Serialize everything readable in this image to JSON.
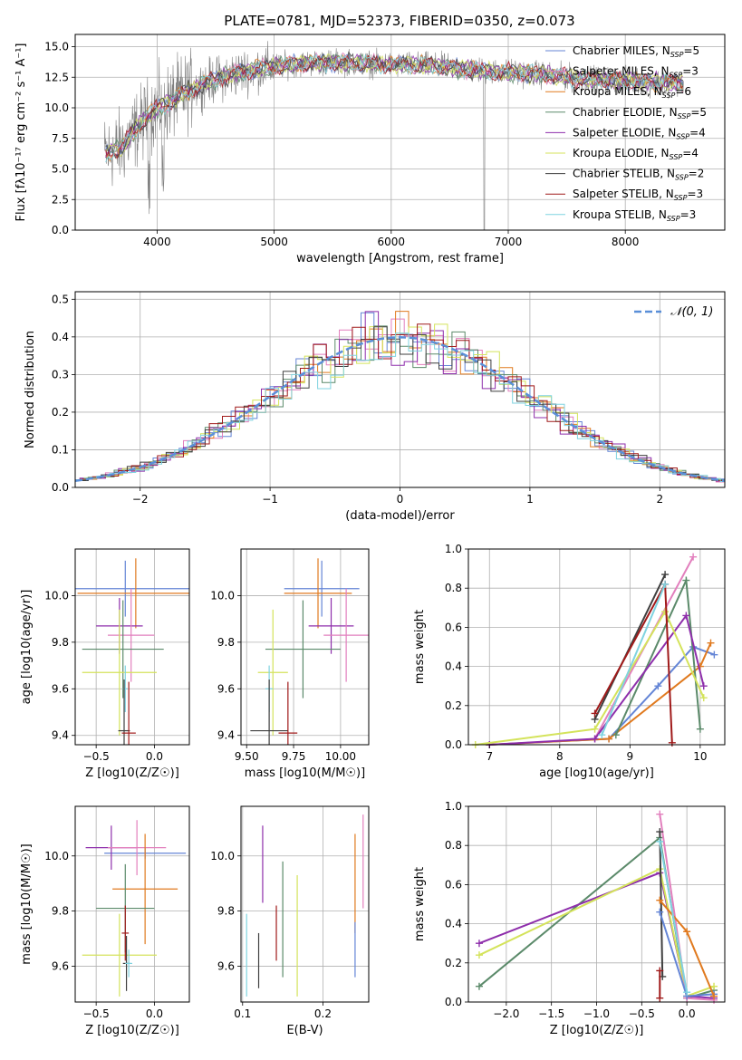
{
  "figure_title": "PLATE=0781, MJD=52373, FIBERID=0350, z=0.073",
  "colors": {
    "chabrier_miles": "#6485d6",
    "salpeter_miles": "#e27fbd",
    "kroupa_miles": "#e07a1f",
    "chabrier_elodie": "#5b8a6a",
    "salpeter_elodie": "#8e2eab",
    "kroupa_elodie": "#d4e35b",
    "chabrier_stelib": "#3f3f3f",
    "salpeter_stelib": "#a01a1a",
    "kroupa_stelib": "#7fd3e0",
    "normal": "#5a8fd8",
    "data": "#808080",
    "grid": "#b0b0b0"
  },
  "legend1": [
    {
      "name": "Chabrier MILES, N",
      "sub": "SSP",
      "tail": "=5",
      "color": "#6485d6"
    },
    {
      "name": "Salpeter MILES, N",
      "sub": "SSP",
      "tail": "=3",
      "color": "#e27fbd"
    },
    {
      "name": "Kroupa MILES, N",
      "sub": "SSP",
      "tail": "=6",
      "color": "#e07a1f"
    },
    {
      "name": "Chabrier ELODIE, N",
      "sub": "SSP",
      "tail": "=5",
      "color": "#5b8a6a"
    },
    {
      "name": "Salpeter ELODIE, N",
      "sub": "SSP",
      "tail": "=4",
      "color": "#8e2eab"
    },
    {
      "name": "Kroupa ELODIE, N",
      "sub": "SSP",
      "tail": "=4",
      "color": "#d4e35b"
    },
    {
      "name": "Chabrier STELIB, N",
      "sub": "SSP",
      "tail": "=2",
      "color": "#3f3f3f"
    },
    {
      "name": "Salpeter STELIB, N",
      "sub": "SSP",
      "tail": "=3",
      "color": "#a01a1a"
    },
    {
      "name": "Kroupa STELIB, N",
      "sub": "SSP",
      "tail": "=3",
      "color": "#7fd3e0"
    }
  ],
  "chart_data": [
    {
      "id": "spectrum",
      "type": "line",
      "xlabel": "wavelength [Angstrom, rest frame]",
      "ylabel": "Flux [fλ10⁻¹⁷ erg cm⁻² s⁻¹ A⁻¹]",
      "xlim": [
        3300,
        8850
      ],
      "ylim": [
        0,
        16
      ],
      "xticks": [
        4000,
        5000,
        6000,
        7000,
        8000
      ],
      "yticks": [
        0.0,
        2.5,
        5.0,
        7.5,
        10.0,
        12.5,
        15.0
      ],
      "continuum": [
        [
          3550,
          6.2
        ],
        [
          3700,
          6.8
        ],
        [
          3850,
          8.6
        ],
        [
          3950,
          9.6
        ],
        [
          4050,
          10.2
        ],
        [
          4200,
          11.0
        ],
        [
          4400,
          12.0
        ],
        [
          4600,
          12.6
        ],
        [
          4800,
          13.1
        ],
        [
          5000,
          13.4
        ],
        [
          5200,
          13.6
        ],
        [
          5400,
          13.7
        ],
        [
          5600,
          13.7
        ],
        [
          5800,
          13.6
        ],
        [
          6000,
          13.5
        ],
        [
          6200,
          13.5
        ],
        [
          6400,
          13.4
        ],
        [
          6600,
          13.2
        ],
        [
          6800,
          13.0
        ],
        [
          7000,
          12.9
        ],
        [
          7200,
          12.8
        ],
        [
          7400,
          12.6
        ],
        [
          7600,
          12.4
        ],
        [
          7800,
          12.3
        ],
        [
          8000,
          12.2
        ],
        [
          8200,
          12.1
        ],
        [
          8500,
          12.0
        ]
      ]
    },
    {
      "id": "residuals",
      "type": "step",
      "xlabel": "(data-model)/error",
      "ylabel": "Normed distribution",
      "xlim": [
        -2.5,
        2.5
      ],
      "ylim": [
        0,
        0.52
      ],
      "xticks": [
        -2,
        -1,
        0,
        1,
        2
      ],
      "yticks": [
        0.0,
        0.1,
        0.2,
        0.3,
        0.4,
        0.5
      ],
      "legend_label": "𝒩(0, 1)"
    },
    {
      "id": "z_age",
      "type": "errorbar",
      "xlabel": "Z [log10(Z/Z☉)]",
      "ylabel": "age  [log10(age/yr)]",
      "xlim": [
        -0.68,
        0.3
      ],
      "ylim": [
        9.36,
        10.2
      ],
      "xticks": [
        -0.5,
        0.0
      ],
      "yticks": [
        9.4,
        9.6,
        9.8,
        10.0
      ],
      "points": [
        {
          "x": -0.25,
          "y": 10.03,
          "xerr": 0.55,
          "yerr": 0.12,
          "color": "#6485d6"
        },
        {
          "x": -0.16,
          "y": 10.01,
          "xerr": 0.5,
          "yerr": 0.15,
          "color": "#e07a1f"
        },
        {
          "x": -0.3,
          "y": 9.87,
          "xerr": 0.2,
          "yerr": 0.12,
          "color": "#8e2eab"
        },
        {
          "x": -0.2,
          "y": 9.83,
          "xerr": 0.2,
          "yerr": 0.2,
          "color": "#e27fbd"
        },
        {
          "x": -0.27,
          "y": 9.77,
          "xerr": 0.35,
          "yerr": 0.21,
          "color": "#5b8a6a"
        },
        {
          "x": -0.3,
          "y": 9.67,
          "xerr": 0.32,
          "yerr": 0.27,
          "color": "#d4e35b"
        },
        {
          "x": -0.25,
          "y": 9.6,
          "xerr": 0.02,
          "yerr": 0.1,
          "color": "#7fd3e0"
        },
        {
          "x": -0.26,
          "y": 9.42,
          "xerr": 0.05,
          "yerr": 0.22,
          "color": "#3f3f3f"
        },
        {
          "x": -0.22,
          "y": 9.41,
          "xerr": 0.06,
          "yerr": 0.22,
          "color": "#a01a1a"
        }
      ]
    },
    {
      "id": "mass_age",
      "type": "errorbar",
      "xlabel": "mass [log10(M/M☉)]",
      "ylabel": "",
      "xlim": [
        9.47,
        10.15
      ],
      "ylim": [
        9.36,
        10.2
      ],
      "xticks": [
        9.5,
        9.75,
        10.0
      ],
      "yticks": [
        9.4,
        9.6,
        9.8,
        10.0
      ],
      "points": [
        {
          "x": 9.9,
          "y": 10.03,
          "xerr": 0.2,
          "yerr": 0.12,
          "color": "#6485d6"
        },
        {
          "x": 9.88,
          "y": 10.01,
          "xerr": 0.18,
          "yerr": 0.15,
          "color": "#e07a1f"
        },
        {
          "x": 9.95,
          "y": 9.87,
          "xerr": 0.12,
          "yerr": 0.12,
          "color": "#8e2eab"
        },
        {
          "x": 10.03,
          "y": 9.83,
          "xerr": 0.12,
          "yerr": 0.2,
          "color": "#e27fbd"
        },
        {
          "x": 9.8,
          "y": 9.77,
          "xerr": 0.2,
          "yerr": 0.21,
          "color": "#5b8a6a"
        },
        {
          "x": 9.64,
          "y": 9.67,
          "xerr": 0.08,
          "yerr": 0.27,
          "color": "#d4e35b"
        },
        {
          "x": 9.62,
          "y": 9.6,
          "xerr": 0.02,
          "yerr": 0.1,
          "color": "#7fd3e0"
        },
        {
          "x": 9.62,
          "y": 9.42,
          "xerr": 0.1,
          "yerr": 0.22,
          "color": "#3f3f3f"
        },
        {
          "x": 9.72,
          "y": 9.41,
          "xerr": 0.05,
          "yerr": 0.22,
          "color": "#a01a1a"
        }
      ]
    },
    {
      "id": "age_weight",
      "type": "line",
      "xlabel": "age  [log10(age/yr)]",
      "ylabel": "mass weight",
      "xlim": [
        6.7,
        10.35
      ],
      "ylim": [
        0,
        1.0
      ],
      "xticks": [
        7,
        8,
        9,
        10
      ],
      "yticks": [
        0.0,
        0.2,
        0.4,
        0.6,
        0.8,
        1.0
      ],
      "series": [
        {
          "color": "#6485d6",
          "x": [
            7.0,
            8.7,
            9.4,
            9.9,
            10.2
          ],
          "y": [
            0.0,
            0.03,
            0.3,
            0.5,
            0.46
          ]
        },
        {
          "color": "#e27fbd",
          "x": [
            8.5,
            9.9
          ],
          "y": [
            0.03,
            0.96
          ]
        },
        {
          "color": "#e07a1f",
          "x": [
            7.0,
            8.7,
            10.0,
            10.15
          ],
          "y": [
            0.0,
            0.03,
            0.4,
            0.52
          ]
        },
        {
          "color": "#5b8a6a",
          "x": [
            8.8,
            9.8,
            10.0
          ],
          "y": [
            0.05,
            0.84,
            0.08
          ]
        },
        {
          "color": "#8e2eab",
          "x": [
            7.0,
            8.5,
            9.8,
            10.05
          ],
          "y": [
            0.0,
            0.03,
            0.66,
            0.3
          ]
        },
        {
          "color": "#d4e35b",
          "x": [
            6.8,
            8.5,
            9.5,
            10.05
          ],
          "y": [
            0.0,
            0.08,
            0.68,
            0.24
          ]
        },
        {
          "color": "#3f3f3f",
          "x": [
            8.5,
            9.5
          ],
          "y": [
            0.13,
            0.87
          ]
        },
        {
          "color": "#a01a1a",
          "x": [
            8.5,
            9.5,
            9.6
          ],
          "y": [
            0.16,
            0.82,
            0.01
          ]
        },
        {
          "color": "#7fd3e0",
          "x": [
            8.6,
            9.5
          ],
          "y": [
            0.05,
            0.82
          ]
        }
      ]
    },
    {
      "id": "z_mass",
      "type": "errorbar",
      "xlabel": "Z [log10(Z/Z☉)]",
      "ylabel": "mass [log10(M/M☉)]",
      "xlim": [
        -0.68,
        0.3
      ],
      "ylim": [
        9.47,
        10.18
      ],
      "xticks": [
        -0.5,
        0.0
      ],
      "yticks": [
        9.6,
        9.8,
        10.0
      ],
      "points": [
        {
          "x": -0.08,
          "y": 10.01,
          "xerr": 0.35,
          "yerr": 0.02,
          "color": "#6485d6"
        },
        {
          "x": -0.37,
          "y": 10.03,
          "xerr": 0.22,
          "yerr": 0.08,
          "color": "#8e2eab"
        },
        {
          "x": -0.15,
          "y": 10.03,
          "xerr": 0.25,
          "yerr": 0.1,
          "color": "#e27fbd"
        },
        {
          "x": -0.08,
          "y": 9.88,
          "xerr": 0.28,
          "yerr": 0.2,
          "color": "#e07a1f"
        },
        {
          "x": -0.25,
          "y": 9.81,
          "xerr": 0.25,
          "yerr": 0.16,
          "color": "#5b8a6a"
        },
        {
          "x": -0.3,
          "y": 9.64,
          "xerr": 0.32,
          "yerr": 0.15,
          "color": "#d4e35b"
        },
        {
          "x": -0.25,
          "y": 9.72,
          "xerr": 0.03,
          "yerr": 0.1,
          "color": "#a01a1a"
        },
        {
          "x": -0.24,
          "y": 9.61,
          "xerr": 0.03,
          "yerr": 0.1,
          "color": "#3f3f3f"
        },
        {
          "x": -0.22,
          "y": 9.61,
          "xerr": 0.03,
          "yerr": 0.05,
          "color": "#7fd3e0"
        }
      ]
    },
    {
      "id": "ebv_mass",
      "type": "errorbar",
      "xlabel": "E(B-V)",
      "ylabel": "",
      "xlim": [
        0.098,
        0.257
      ],
      "ylim": [
        9.47,
        10.18
      ],
      "xticks": [
        0.1,
        0.2
      ],
      "yticks": [
        9.6,
        9.8,
        10.0
      ],
      "points": [
        {
          "x": 0.105,
          "y": 9.64,
          "xerr": 0.0,
          "yerr": 0.15,
          "color": "#7fd3e0"
        },
        {
          "x": 0.12,
          "y": 9.62,
          "xerr": 0.0,
          "yerr": 0.1,
          "color": "#3f3f3f"
        },
        {
          "x": 0.125,
          "y": 9.97,
          "xerr": 0.0,
          "yerr": 0.14,
          "color": "#8e2eab"
        },
        {
          "x": 0.142,
          "y": 9.72,
          "xerr": 0.0,
          "yerr": 0.1,
          "color": "#a01a1a"
        },
        {
          "x": 0.15,
          "y": 9.77,
          "xerr": 0.0,
          "yerr": 0.21,
          "color": "#5b8a6a"
        },
        {
          "x": 0.168,
          "y": 9.71,
          "xerr": 0.0,
          "yerr": 0.22,
          "color": "#d4e35b"
        },
        {
          "x": 0.24,
          "y": 9.9,
          "xerr": 0.0,
          "yerr": 0.18,
          "color": "#e07a1f"
        },
        {
          "x": 0.24,
          "y": 9.66,
          "xerr": 0.0,
          "yerr": 0.1,
          "color": "#6485d6"
        },
        {
          "x": 0.25,
          "y": 9.98,
          "xerr": 0.0,
          "yerr": 0.17,
          "color": "#e27fbd"
        }
      ]
    },
    {
      "id": "z_weight",
      "type": "line",
      "xlabel": "Z [log10(Z/Z☉)]",
      "ylabel": "mass weight",
      "xlim": [
        -2.42,
        0.42
      ],
      "ylim": [
        0,
        1.0
      ],
      "xticks": [
        -2.0,
        -1.5,
        -1.0,
        -0.5,
        0.0
      ],
      "yticks": [
        0.0,
        0.2,
        0.4,
        0.6,
        0.8,
        1.0
      ],
      "series": [
        {
          "color": "#5b8a6a",
          "x": [
            -2.3,
            -0.3,
            0.0,
            0.3
          ],
          "y": [
            0.08,
            0.84,
            0.02,
            0.06
          ]
        },
        {
          "color": "#8e2eab",
          "x": [
            -2.3,
            -0.3,
            0.0,
            0.3
          ],
          "y": [
            0.3,
            0.66,
            0.03,
            0.02
          ]
        },
        {
          "color": "#d4e35b",
          "x": [
            -2.3,
            -0.3,
            0.0,
            0.3
          ],
          "y": [
            0.24,
            0.68,
            0.03,
            0.08
          ]
        },
        {
          "color": "#e27fbd",
          "x": [
            -0.3,
            0.0,
            0.3
          ],
          "y": [
            0.96,
            0.02,
            0.01
          ]
        },
        {
          "color": "#3f3f3f",
          "x": [
            -0.3,
            -0.27
          ],
          "y": [
            0.87,
            0.13
          ]
        },
        {
          "color": "#6485d6",
          "x": [
            -0.3,
            0.0,
            0.3
          ],
          "y": [
            0.46,
            0.03,
            0.04
          ]
        },
        {
          "color": "#e07a1f",
          "x": [
            -0.3,
            0.0,
            0.3
          ],
          "y": [
            0.52,
            0.36,
            0.03
          ]
        },
        {
          "color": "#a01a1a",
          "x": [
            -0.3,
            -0.3
          ],
          "y": [
            0.16,
            0.02
          ]
        },
        {
          "color": "#7fd3e0",
          "x": [
            -0.3,
            0.0
          ],
          "y": [
            0.82,
            0.05
          ]
        }
      ]
    }
  ]
}
